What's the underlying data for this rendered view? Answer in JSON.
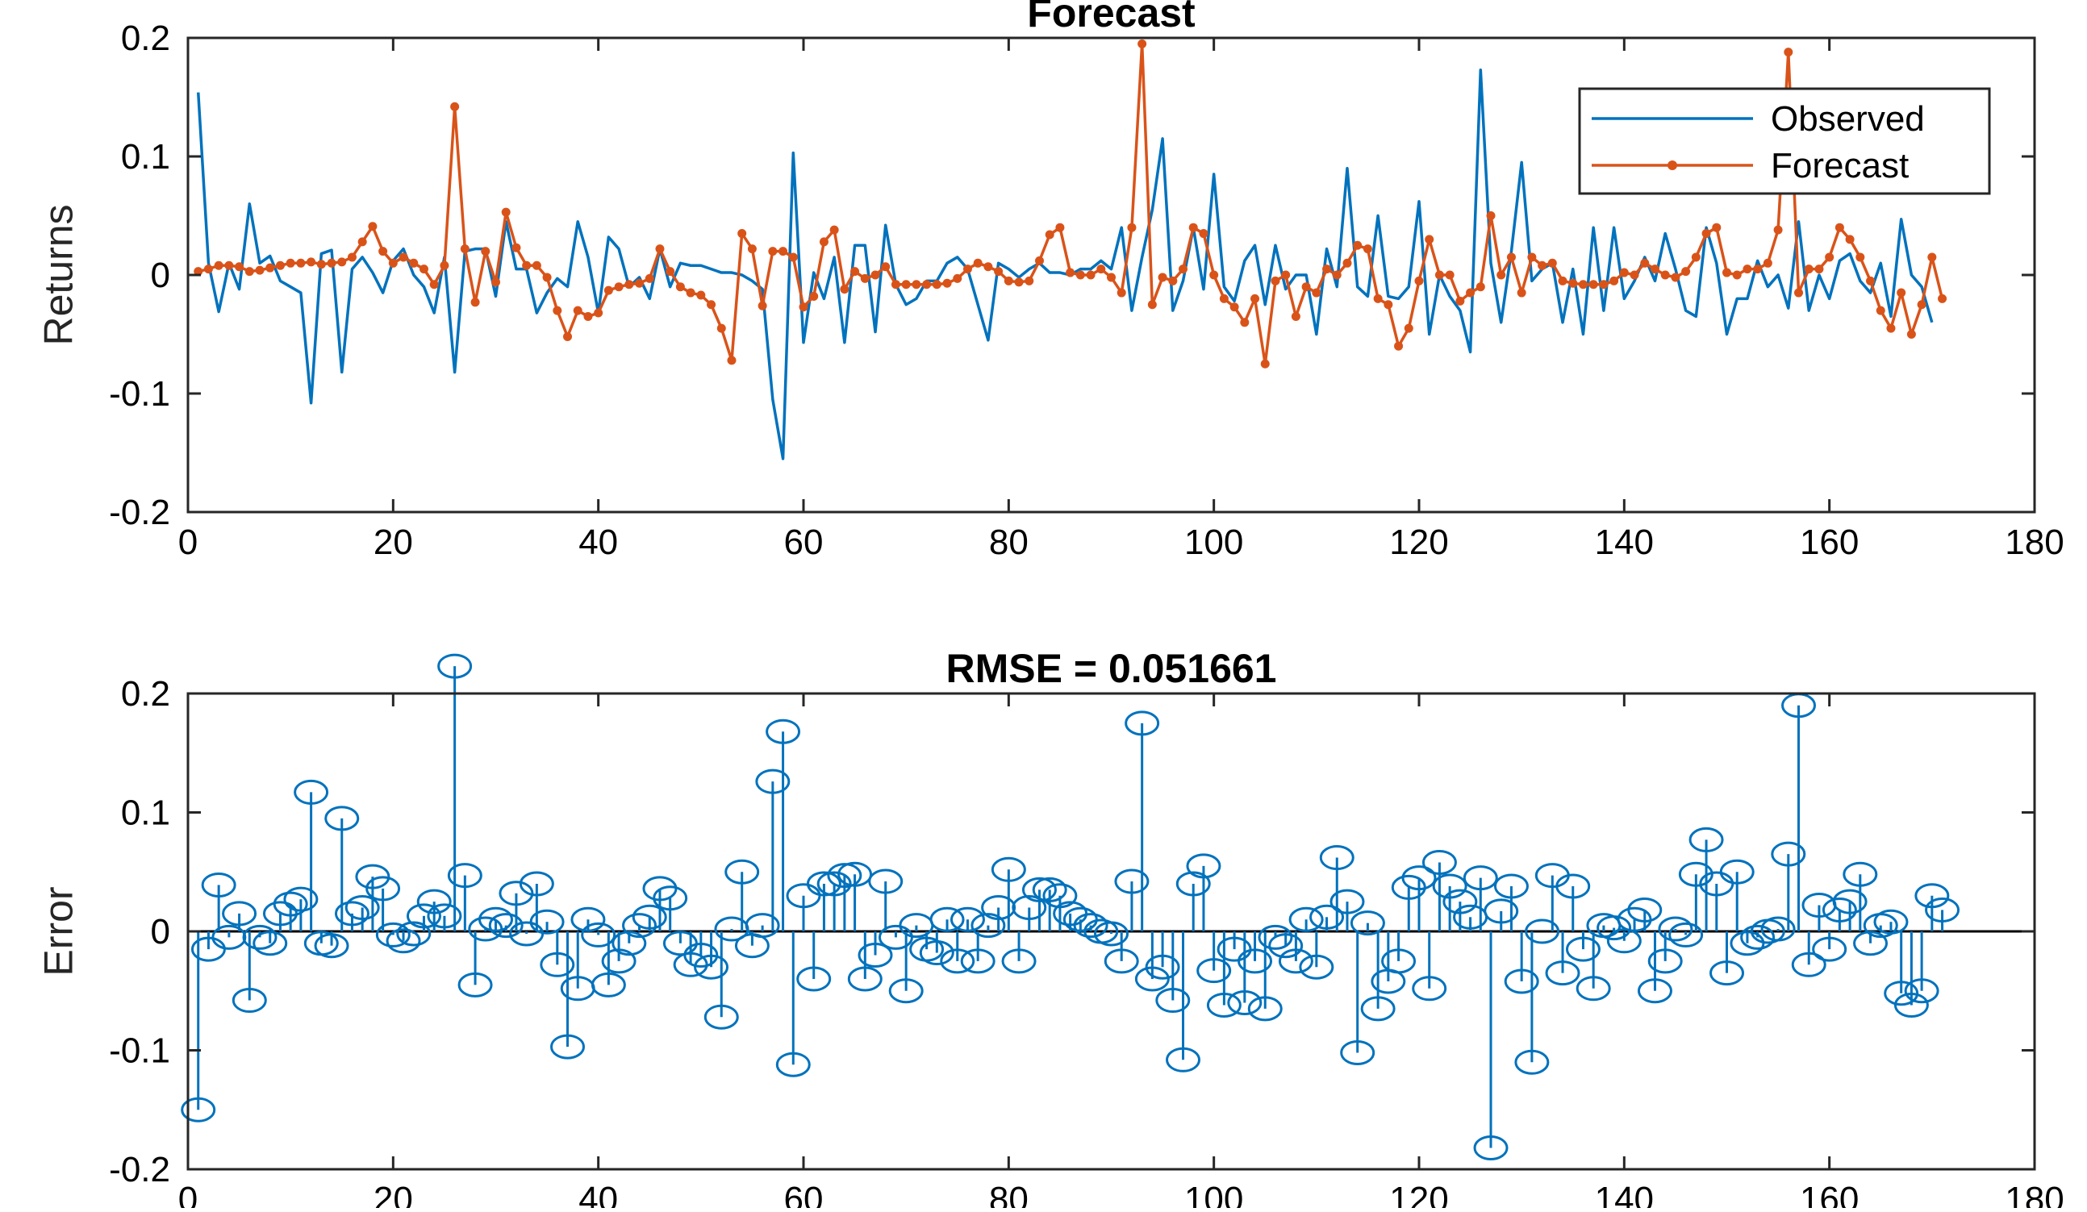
{
  "colors": {
    "observed": "#0072BD",
    "forecast": "#D95319",
    "error": "#0072BD",
    "axis": "#262626",
    "background": "#ffffff"
  },
  "chart_data": [
    {
      "type": "line",
      "title": "Forecast",
      "xlabel": "",
      "ylabel": "Returns",
      "xlim": [
        0,
        180
      ],
      "ylim": [
        -0.2,
        0.2
      ],
      "xticks": [
        0,
        20,
        40,
        60,
        80,
        100,
        120,
        140,
        160,
        180
      ],
      "yticks": [
        -0.2,
        -0.1,
        0,
        0.1,
        0.2
      ],
      "xtick_labels": [
        "0",
        "20",
        "40",
        "60",
        "80",
        "100",
        "120",
        "140",
        "160",
        "180"
      ],
      "ytick_labels": [
        "-0.2",
        "-0.1",
        "0",
        "0.1",
        "0.2"
      ],
      "grid": false,
      "legend": {
        "position": "top-right",
        "entries": [
          "Observed",
          "Forecast"
        ]
      },
      "x_start": 1,
      "series": [
        {
          "name": "Observed",
          "marker": "none",
          "values": [
            0.154,
            0.01,
            -0.031,
            0.01,
            -0.012,
            0.06,
            0.01,
            0.016,
            -0.005,
            -0.01,
            -0.015,
            -0.108,
            0.018,
            0.021,
            -0.082,
            0.005,
            0.015,
            0.002,
            -0.015,
            0.012,
            0.022,
            0.0,
            -0.01,
            -0.032,
            0.015,
            -0.082,
            0.02,
            0.022,
            0.022,
            -0.018,
            0.045,
            0.005,
            0.005,
            -0.032,
            -0.015,
            -0.003,
            -0.01,
            0.045,
            0.015,
            -0.032,
            0.032,
            0.022,
            -0.01,
            -0.002,
            -0.02,
            0.022,
            -0.01,
            0.01,
            0.008,
            0.008,
            0.005,
            0.002,
            0.002,
            0.0,
            -0.005,
            -0.012,
            -0.105,
            -0.155,
            0.103,
            -0.057,
            0.002,
            -0.02,
            0.015,
            -0.057,
            0.025,
            0.025,
            -0.048,
            0.042,
            -0.008,
            -0.025,
            -0.02,
            -0.005,
            -0.005,
            0.01,
            0.015,
            0.005,
            -0.025,
            -0.055,
            0.01,
            0.005,
            -0.002,
            0.005,
            0.01,
            0.002,
            0.002,
            0.0,
            0.005,
            0.005,
            0.012,
            0.005,
            0.04,
            -0.03,
            0.015,
            0.055,
            0.115,
            -0.03,
            -0.005,
            0.04,
            -0.012,
            0.085,
            -0.01,
            -0.022,
            0.012,
            0.025,
            -0.025,
            0.025,
            -0.012,
            0.0,
            0.0,
            -0.05,
            0.022,
            -0.01,
            0.09,
            -0.01,
            -0.018,
            0.05,
            -0.018,
            -0.02,
            -0.01,
            0.062,
            -0.05,
            0.0,
            -0.018,
            -0.03,
            -0.065,
            0.173,
            0.01,
            -0.04,
            0.02,
            0.095,
            -0.005,
            0.005,
            0.01,
            -0.04,
            0.005,
            -0.05,
            0.04,
            -0.03,
            0.04,
            -0.02,
            -0.005,
            0.015,
            -0.005,
            0.035,
            0.005,
            -0.03,
            -0.035,
            0.04,
            0.01,
            -0.05,
            -0.02,
            -0.02,
            0.012,
            -0.01,
            0.0,
            -0.028,
            0.045,
            -0.03,
            0.0,
            -0.02,
            0.012,
            0.018,
            -0.005,
            -0.015,
            0.01,
            -0.035,
            0.047,
            0.0,
            -0.01,
            -0.04
          ]
        },
        {
          "name": "Forecast",
          "marker": "dot",
          "values": [
            0.003,
            0.005,
            0.008,
            0.008,
            0.007,
            0.003,
            0.004,
            0.006,
            0.008,
            0.01,
            0.01,
            0.011,
            0.009,
            0.01,
            0.011,
            0.015,
            0.028,
            0.041,
            0.02,
            0.01,
            0.015,
            0.01,
            0.005,
            -0.008,
            0.008,
            0.142,
            0.022,
            -0.023,
            0.02,
            -0.006,
            0.053,
            0.023,
            0.008,
            0.008,
            -0.002,
            -0.03,
            -0.052,
            -0.03,
            -0.035,
            -0.032,
            -0.013,
            -0.01,
            -0.008,
            -0.007,
            -0.003,
            0.022,
            0.003,
            -0.01,
            -0.015,
            -0.017,
            -0.025,
            -0.045,
            -0.072,
            0.035,
            0.022,
            -0.026,
            0.02,
            0.02,
            0.015,
            -0.027,
            -0.018,
            0.028,
            0.038,
            -0.012,
            0.003,
            -0.003,
            0.0,
            0.007,
            -0.008,
            -0.008,
            -0.008,
            -0.008,
            -0.008,
            -0.007,
            -0.003,
            0.005,
            0.01,
            0.007,
            0.003,
            -0.005,
            -0.006,
            -0.005,
            0.012,
            0.034,
            0.04,
            0.002,
            0.0,
            0.0,
            0.005,
            -0.002,
            -0.015,
            0.04,
            0.195,
            -0.025,
            -0.002,
            -0.005,
            0.005,
            0.04,
            0.035,
            0.0,
            -0.02,
            -0.027,
            -0.04,
            -0.02,
            -0.075,
            -0.005,
            0.0,
            -0.035,
            -0.01,
            -0.015,
            0.005,
            0.0,
            0.01,
            0.025,
            0.022,
            -0.02,
            -0.025,
            -0.06,
            -0.045,
            -0.005,
            0.03,
            0.0,
            0.0,
            -0.022,
            -0.015,
            -0.01,
            0.05,
            0.0,
            0.015,
            -0.015,
            0.015,
            0.008,
            0.01,
            -0.005,
            -0.007,
            -0.008,
            -0.008,
            -0.008,
            -0.005,
            0.002,
            0.0,
            0.01,
            0.005,
            0.0,
            -0.002,
            0.003,
            0.015,
            0.035,
            0.04,
            0.002,
            0.0,
            0.005,
            0.005,
            0.01,
            0.038,
            0.188,
            -0.015,
            0.005,
            0.005,
            0.015,
            0.04,
            0.03,
            0.015,
            -0.005,
            -0.03,
            -0.045,
            -0.015,
            -0.05,
            -0.025,
            0.015,
            -0.02
          ]
        }
      ]
    },
    {
      "type": "stem",
      "title": "RMSE = 0.051661",
      "xlabel": "",
      "ylabel": "Error",
      "xlim": [
        0,
        180
      ],
      "ylim": [
        -0.2,
        0.2
      ],
      "xticks": [
        0,
        20,
        40,
        60,
        80,
        100,
        120,
        140,
        160,
        180
      ],
      "yticks": [
        -0.2,
        -0.1,
        0,
        0.1,
        0.2
      ],
      "xtick_labels": [
        "0",
        "20",
        "40",
        "60",
        "80",
        "100",
        "120",
        "140",
        "160",
        "180"
      ],
      "ytick_labels": [
        "-0.2",
        "-0.1",
        "0",
        "0.1",
        "0.2"
      ],
      "grid": false,
      "baseline": 0,
      "x_start": 1,
      "series": [
        {
          "name": "Error",
          "marker": "circle",
          "values": [
            -0.15,
            -0.015,
            0.039,
            -0.005,
            0.015,
            -0.058,
            -0.005,
            -0.01,
            0.015,
            0.023,
            0.027,
            0.117,
            -0.01,
            -0.012,
            0.095,
            0.015,
            0.02,
            0.046,
            0.036,
            -0.003,
            -0.008,
            -0.002,
            0.013,
            0.025,
            0.013,
            0.223,
            0.047,
            -0.045,
            0.002,
            0.01,
            0.005,
            0.032,
            -0.002,
            0.04,
            0.008,
            -0.028,
            -0.097,
            -0.048,
            0.01,
            -0.003,
            -0.045,
            -0.025,
            -0.01,
            0.005,
            0.012,
            0.036,
            0.028,
            -0.01,
            -0.028,
            -0.02,
            -0.03,
            -0.072,
            0.002,
            0.05,
            -0.012,
            0.005,
            0.126,
            0.168,
            -0.112,
            0.03,
            -0.04,
            0.04,
            0.04,
            0.047,
            0.048,
            -0.04,
            -0.02,
            0.042,
            -0.005,
            -0.05,
            0.005,
            -0.015,
            -0.018,
            0.01,
            -0.025,
            0.01,
            -0.025,
            0.005,
            0.02,
            0.052,
            -0.025,
            0.02,
            0.035,
            0.035,
            0.03,
            0.015,
            0.01,
            0.005,
            0.0,
            -0.002,
            -0.025,
            0.042,
            0.175,
            -0.04,
            -0.03,
            -0.058,
            -0.108,
            0.04,
            0.055,
            -0.033,
            -0.062,
            -0.015,
            -0.06,
            -0.025,
            -0.065,
            -0.005,
            -0.012,
            -0.025,
            0.01,
            -0.03,
            0.012,
            0.062,
            0.025,
            -0.102,
            0.007,
            -0.065,
            -0.042,
            -0.025,
            0.037,
            0.045,
            -0.048,
            0.058,
            0.038,
            0.025,
            0.012,
            0.045,
            -0.182,
            0.017,
            0.038,
            -0.042,
            -0.11,
            0.0,
            0.047,
            -0.035,
            0.038,
            -0.015,
            -0.048,
            0.005,
            0.003,
            -0.008,
            0.01,
            0.018,
            -0.05,
            -0.025,
            0.002,
            -0.003,
            0.048,
            0.077,
            0.04,
            -0.035,
            0.05,
            -0.01,
            -0.005,
            0.0,
            0.002,
            0.065,
            0.19,
            -0.028,
            0.022,
            -0.015,
            0.018,
            0.025,
            0.048,
            -0.01,
            0.005,
            0.008,
            -0.052,
            -0.062,
            -0.05,
            0.03,
            0.018
          ]
        }
      ]
    }
  ]
}
